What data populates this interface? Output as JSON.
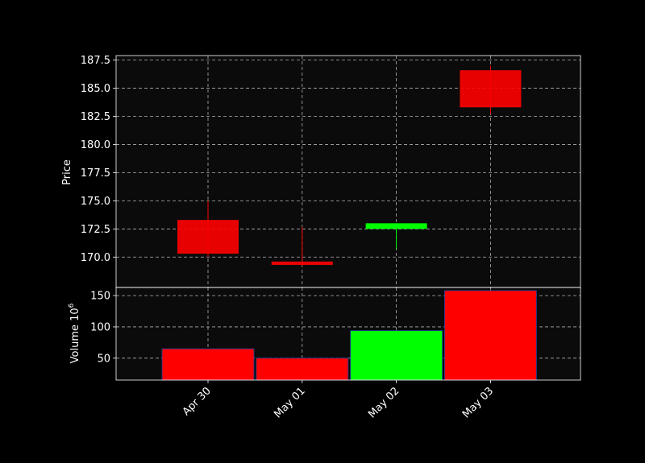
{
  "colors": {
    "background": "#000000",
    "panel": "#0b0b0b",
    "up": "#00ff00",
    "down": "#ff0000",
    "grid": "#b0b0b0",
    "text": "#ffffff",
    "volume_edge": "#1f3fa0"
  },
  "chart_data": {
    "type": "candlestick",
    "categories": [
      "Apr 30",
      "May 01",
      "May 02",
      "May 03"
    ],
    "ohlc": [
      {
        "date": "Apr 30",
        "open": 173.3,
        "high": 175.0,
        "low": 170.0,
        "close": 170.3
      },
      {
        "date": "May 01",
        "open": 169.6,
        "high": 172.7,
        "low": 169.2,
        "close": 169.3
      },
      {
        "date": "May 02",
        "open": 172.5,
        "high": 173.0,
        "low": 170.7,
        "close": 173.0
      },
      {
        "date": "May 03",
        "open": 186.6,
        "high": 187.0,
        "low": 182.7,
        "close": 183.3
      }
    ],
    "volume": [
      65,
      50,
      94,
      158
    ],
    "price_axis": {
      "label": "Price",
      "ylim": [
        167.3,
        187.9
      ],
      "ticks": [
        170.0,
        172.5,
        175.0,
        177.5,
        180.0,
        182.5,
        185.0,
        187.5
      ],
      "tick_labels": [
        "170.0",
        "172.5",
        "175.0",
        "177.5",
        "180.0",
        "182.5",
        "185.0",
        "187.5"
      ]
    },
    "volume_axis": {
      "label": "Volume  10",
      "label_exponent": "6",
      "ylim": [
        15,
        163
      ],
      "ticks": [
        50,
        100,
        150
      ],
      "tick_labels": [
        "50",
        "100",
        "150"
      ]
    },
    "grid": true
  }
}
